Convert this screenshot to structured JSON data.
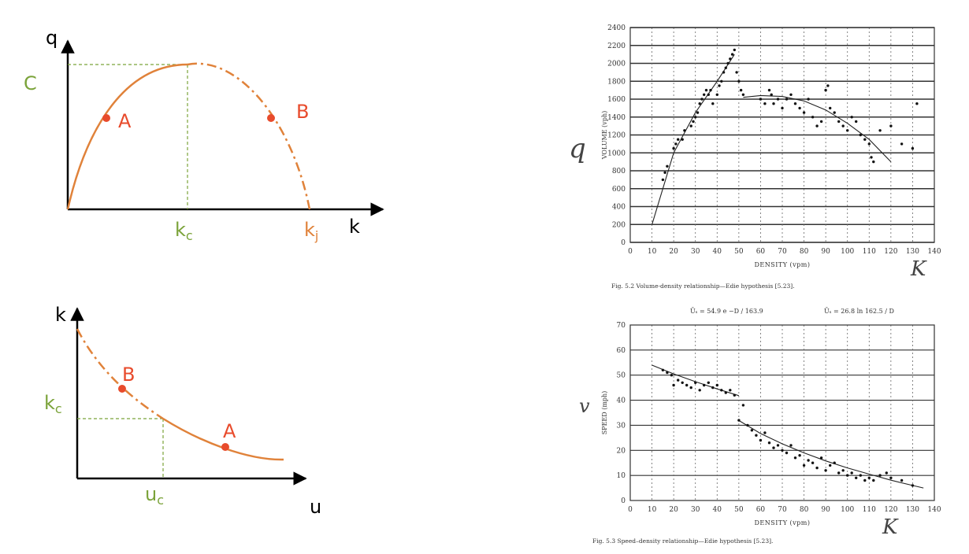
{
  "colors": {
    "orange": "#e0823a",
    "red": "#e84b2c",
    "green": "#7ba33a",
    "black": "#000000",
    "ink": "#333333"
  },
  "sketch_top": {
    "y_axis_label": "q",
    "x_axis_label": "k",
    "capacity_label": "C",
    "kc_label": "k",
    "kc_sub": "c",
    "kj_label": "k",
    "kj_sub": "j",
    "point_a_label": "A",
    "point_b_label": "B"
  },
  "sketch_bottom": {
    "y_axis_label": "k",
    "x_axis_label": "u",
    "kc_label": "k",
    "kc_sub": "c",
    "uc_label": "u",
    "uc_sub": "c",
    "point_a_label": "A",
    "point_b_label": "B"
  },
  "chart_data": [
    {
      "type": "scatter",
      "title": "",
      "caption": "Fig. 5.2   Volume-density relationship—Edie hypothesis [5.23].",
      "xlabel": "DENSITY  (vpm)",
      "ylabel": "VOLUME  (vph)",
      "handwritten_y": "q",
      "handwritten_x": "K",
      "xlim": [
        0,
        140
      ],
      "ylim": [
        0,
        2400
      ],
      "x_ticks": [
        0,
        10,
        20,
        30,
        40,
        50,
        60,
        70,
        80,
        90,
        100,
        110,
        120,
        130,
        140
      ],
      "y_ticks": [
        0,
        200,
        400,
        600,
        800,
        1000,
        1200,
        1400,
        1600,
        1800,
        2000,
        2200,
        2400
      ],
      "grid": true,
      "series": [
        {
          "points": [
            [
              15,
              700
            ],
            [
              16,
              780
            ],
            [
              17,
              850
            ],
            [
              20,
              1050
            ],
            [
              21,
              1100
            ],
            [
              22,
              1150
            ],
            [
              24,
              1150
            ],
            [
              25,
              1250
            ],
            [
              28,
              1300
            ],
            [
              29,
              1350
            ],
            [
              30,
              1400
            ],
            [
              31,
              1450
            ],
            [
              32,
              1550
            ],
            [
              33,
              1600
            ],
            [
              34,
              1650
            ],
            [
              35,
              1700
            ],
            [
              36,
              1650
            ],
            [
              37,
              1700
            ],
            [
              38,
              1550
            ],
            [
              40,
              1650
            ],
            [
              41,
              1750
            ],
            [
              42,
              1800
            ],
            [
              43,
              1900
            ],
            [
              44,
              1950
            ],
            [
              45,
              2000
            ],
            [
              46,
              2050
            ],
            [
              47,
              2100
            ],
            [
              48,
              2150
            ],
            [
              49,
              1900
            ],
            [
              50,
              1800
            ],
            [
              51,
              1700
            ],
            [
              52,
              1650
            ],
            [
              60,
              1600
            ],
            [
              62,
              1550
            ],
            [
              64,
              1700
            ],
            [
              65,
              1650
            ],
            [
              66,
              1550
            ],
            [
              68,
              1600
            ],
            [
              70,
              1500
            ],
            [
              72,
              1600
            ],
            [
              74,
              1650
            ],
            [
              76,
              1550
            ],
            [
              78,
              1500
            ],
            [
              80,
              1450
            ],
            [
              82,
              1600
            ],
            [
              84,
              1400
            ],
            [
              86,
              1300
            ],
            [
              88,
              1350
            ],
            [
              90,
              1700
            ],
            [
              91,
              1750
            ],
            [
              92,
              1500
            ],
            [
              94,
              1450
            ],
            [
              96,
              1350
            ],
            [
              98,
              1300
            ],
            [
              100,
              1250
            ],
            [
              102,
              1400
            ],
            [
              104,
              1350
            ],
            [
              106,
              1200
            ],
            [
              108,
              1150
            ],
            [
              110,
              1100
            ],
            [
              111,
              950
            ],
            [
              112,
              900
            ],
            [
              115,
              1250
            ],
            [
              120,
              1300
            ],
            [
              125,
              1100
            ],
            [
              130,
              1050
            ],
            [
              132,
              1550
            ]
          ]
        }
      ],
      "fit_segments": [
        {
          "x": [
            10,
            20,
            30,
            40,
            48
          ],
          "y": [
            200,
            1000,
            1450,
            1800,
            2100
          ]
        },
        {
          "x": [
            52,
            60,
            70,
            80,
            90,
            100,
            110,
            120
          ],
          "y": [
            1620,
            1640,
            1630,
            1580,
            1480,
            1330,
            1150,
            900
          ]
        }
      ]
    },
    {
      "type": "scatter",
      "title": "",
      "caption": "Fig. 5.3   Speed–density relationship—Edie hypothesis [5.23].",
      "xlabel": "DENSITY (vpm)",
      "ylabel": "SPEED (mph)",
      "handwritten_y": "v",
      "handwritten_x": "K",
      "equation_left": "Ūₛ = 54.9 e  −D / 163.9",
      "equation_right": "Ūₛ = 26.8 ln  162.5 / D",
      "xlim": [
        0,
        140
      ],
      "ylim": [
        0,
        70
      ],
      "x_ticks": [
        0,
        10,
        20,
        30,
        40,
        50,
        60,
        70,
        80,
        90,
        100,
        110,
        120,
        130,
        140
      ],
      "y_ticks": [
        0,
        10,
        20,
        30,
        40,
        50,
        60,
        70
      ],
      "grid": true,
      "series": [
        {
          "points": [
            [
              15,
              52
            ],
            [
              17,
              51
            ],
            [
              19,
              50
            ],
            [
              20,
              46
            ],
            [
              22,
              48
            ],
            [
              24,
              47
            ],
            [
              26,
              46
            ],
            [
              28,
              45
            ],
            [
              30,
              47
            ],
            [
              32,
              44
            ],
            [
              34,
              46
            ],
            [
              36,
              47
            ],
            [
              38,
              45
            ],
            [
              40,
              46
            ],
            [
              42,
              44
            ],
            [
              44,
              43
            ],
            [
              46,
              44
            ],
            [
              48,
              42
            ],
            [
              50,
              32
            ],
            [
              52,
              38
            ],
            [
              54,
              30
            ],
            [
              56,
              28
            ],
            [
              58,
              26
            ],
            [
              60,
              24
            ],
            [
              62,
              27
            ],
            [
              64,
              23
            ],
            [
              66,
              21
            ],
            [
              68,
              22
            ],
            [
              70,
              20
            ],
            [
              72,
              19
            ],
            [
              74,
              22
            ],
            [
              76,
              17
            ],
            [
              78,
              18
            ],
            [
              80,
              14
            ],
            [
              82,
              16
            ],
            [
              84,
              15
            ],
            [
              86,
              13
            ],
            [
              88,
              17
            ],
            [
              90,
              12
            ],
            [
              92,
              14
            ],
            [
              94,
              15
            ],
            [
              96,
              11
            ],
            [
              98,
              12
            ],
            [
              100,
              10
            ],
            [
              102,
              11
            ],
            [
              104,
              9
            ],
            [
              106,
              10
            ],
            [
              108,
              8
            ],
            [
              110,
              9
            ],
            [
              112,
              8
            ],
            [
              115,
              10
            ],
            [
              118,
              11
            ],
            [
              120,
              9
            ],
            [
              125,
              8
            ],
            [
              130,
              6
            ]
          ]
        }
      ],
      "fit_segments": [
        {
          "x": [
            10,
            20,
            30,
            40,
            50
          ],
          "y": [
            54,
            50.5,
            47.4,
            44.5,
            41.8
          ]
        },
        {
          "x": [
            50,
            60,
            70,
            80,
            90,
            100,
            110,
            120,
            130,
            135
          ],
          "y": [
            31.9,
            26.7,
            22.6,
            19,
            15.8,
            13,
            10.5,
            8.1,
            6,
            5
          ]
        }
      ]
    }
  ]
}
